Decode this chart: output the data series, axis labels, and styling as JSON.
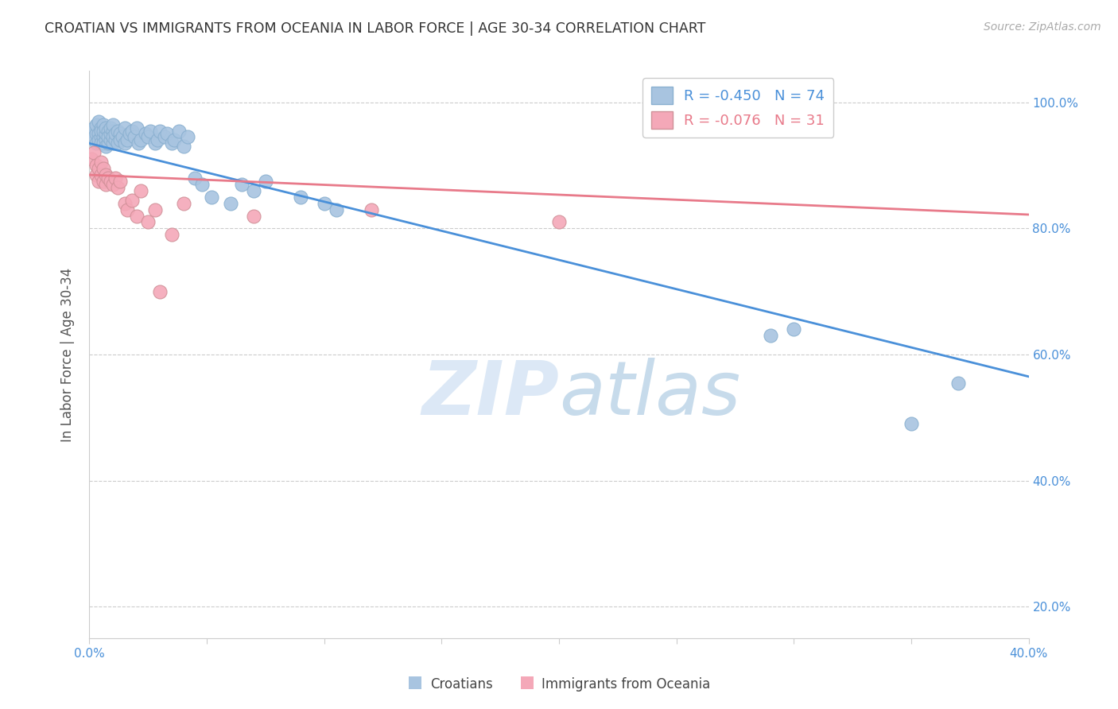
{
  "title": "CROATIAN VS IMMIGRANTS FROM OCEANIA IN LABOR FORCE | AGE 30-34 CORRELATION CHART",
  "source": "Source: ZipAtlas.com",
  "ylabel_label": "In Labor Force | Age 30-34",
  "xlim": [
    0.0,
    0.4
  ],
  "ylim": [
    0.15,
    1.05
  ],
  "croatians_color": "#a8c4e0",
  "oceania_color": "#f4a8b8",
  "blue_line_color": "#4a90d9",
  "pink_line_color": "#e87a8a",
  "legend_R_croatians": "-0.450",
  "legend_N_croatians": "74",
  "legend_R_oceania": "-0.076",
  "legend_N_oceania": "31",
  "legend_label_croatians": "Croatians",
  "legend_label_oceania": "Immigrants from Oceania",
  "watermark_zip": "ZIP",
  "watermark_atlas": "atlas",
  "blue_line_x": [
    0.0,
    0.4
  ],
  "blue_line_y": [
    0.935,
    0.565
  ],
  "pink_line_x": [
    0.0,
    0.4
  ],
  "pink_line_y": [
    0.885,
    0.822
  ],
  "croatians_x": [
    0.001,
    0.002,
    0.002,
    0.003,
    0.003,
    0.003,
    0.004,
    0.004,
    0.004,
    0.005,
    0.005,
    0.005,
    0.005,
    0.006,
    0.006,
    0.006,
    0.006,
    0.007,
    0.007,
    0.007,
    0.007,
    0.008,
    0.008,
    0.008,
    0.009,
    0.009,
    0.009,
    0.01,
    0.01,
    0.01,
    0.01,
    0.011,
    0.011,
    0.012,
    0.012,
    0.013,
    0.013,
    0.014,
    0.015,
    0.015,
    0.016,
    0.017,
    0.018,
    0.019,
    0.02,
    0.021,
    0.022,
    0.024,
    0.025,
    0.026,
    0.028,
    0.029,
    0.03,
    0.032,
    0.033,
    0.035,
    0.036,
    0.038,
    0.04,
    0.042,
    0.045,
    0.048,
    0.052,
    0.06,
    0.065,
    0.07,
    0.075,
    0.09,
    0.1,
    0.105,
    0.29,
    0.3,
    0.35,
    0.37
  ],
  "croatians_y": [
    0.955,
    0.945,
    0.96,
    0.95,
    0.935,
    0.965,
    0.95,
    0.94,
    0.97,
    0.945,
    0.935,
    0.96,
    0.955,
    0.945,
    0.935,
    0.965,
    0.955,
    0.94,
    0.95,
    0.93,
    0.96,
    0.935,
    0.955,
    0.945,
    0.94,
    0.95,
    0.96,
    0.935,
    0.955,
    0.945,
    0.965,
    0.94,
    0.95,
    0.935,
    0.955,
    0.95,
    0.94,
    0.945,
    0.935,
    0.96,
    0.94,
    0.95,
    0.955,
    0.945,
    0.96,
    0.935,
    0.94,
    0.95,
    0.945,
    0.955,
    0.935,
    0.94,
    0.955,
    0.945,
    0.95,
    0.935,
    0.94,
    0.955,
    0.93,
    0.945,
    0.88,
    0.87,
    0.85,
    0.84,
    0.87,
    0.86,
    0.875,
    0.85,
    0.84,
    0.83,
    0.63,
    0.64,
    0.49,
    0.555
  ],
  "oceania_x": [
    0.001,
    0.002,
    0.003,
    0.003,
    0.004,
    0.004,
    0.005,
    0.005,
    0.006,
    0.006,
    0.007,
    0.007,
    0.008,
    0.009,
    0.01,
    0.011,
    0.012,
    0.013,
    0.015,
    0.016,
    0.018,
    0.02,
    0.022,
    0.025,
    0.028,
    0.03,
    0.035,
    0.04,
    0.07,
    0.12,
    0.2
  ],
  "oceania_y": [
    0.91,
    0.92,
    0.9,
    0.885,
    0.895,
    0.875,
    0.905,
    0.885,
    0.895,
    0.875,
    0.885,
    0.87,
    0.88,
    0.875,
    0.87,
    0.88,
    0.865,
    0.875,
    0.84,
    0.83,
    0.845,
    0.82,
    0.86,
    0.81,
    0.83,
    0.7,
    0.79,
    0.84,
    0.82,
    0.83,
    0.81
  ]
}
